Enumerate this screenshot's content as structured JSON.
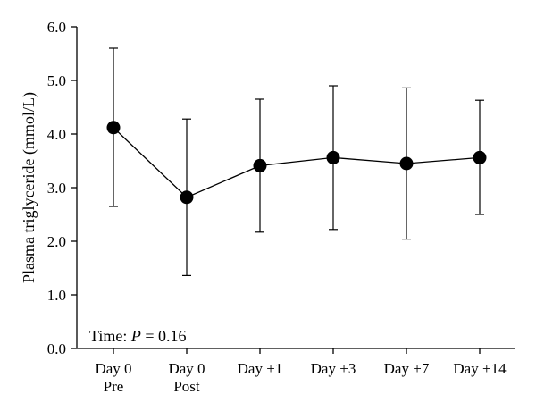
{
  "chart_data": {
    "type": "line",
    "title": "",
    "xlabel": "",
    "ylabel": "Plasma triglyceride (mmol/L)",
    "ylim": [
      0,
      6
    ],
    "yticks": [
      "0.0",
      "1.0",
      "2.0",
      "3.0",
      "4.0",
      "5.0",
      "6.0"
    ],
    "categories": [
      [
        "Day 0",
        "Pre"
      ],
      [
        "Day 0",
        "Post"
      ],
      [
        "Day +1"
      ],
      [
        "Day +3"
      ],
      [
        "Day +7"
      ],
      [
        "Day +14"
      ]
    ],
    "series": [
      {
        "values": [
          4.12,
          2.82,
          3.41,
          3.56,
          3.45,
          3.56
        ],
        "error_upper": [
          5.6,
          4.28,
          4.65,
          4.9,
          4.86,
          4.63
        ],
        "error_lower": [
          2.65,
          1.36,
          2.17,
          2.22,
          2.04,
          2.5
        ]
      }
    ],
    "annotation": {
      "prefix": "Time: ",
      "italic": "P",
      "suffix": " = 0.16"
    },
    "grid": false,
    "legend": "none"
  }
}
